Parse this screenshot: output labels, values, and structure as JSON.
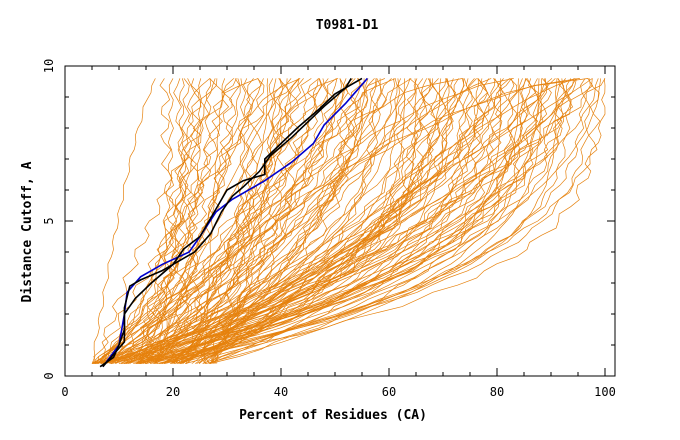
{
  "chart_data": {
    "type": "line",
    "title": "T0981-D1",
    "xlabel": "Percent of Residues (CA)",
    "ylabel": "Distance Cutoff, A",
    "xlim": [
      0,
      101
    ],
    "ylim": [
      0,
      10
    ],
    "x_ticks": [
      0,
      20,
      40,
      60,
      80,
      100
    ],
    "y_ticks": [
      0,
      5,
      10
    ],
    "grid": false,
    "legend": "none",
    "colors": {
      "orange": "#e6820e",
      "blue": "#0000cc",
      "black": "#000000"
    },
    "orange_band": {
      "count": 150,
      "note_free": true,
      "x_at_0_4_range": [
        5,
        28
      ],
      "x_at_9_6_range": [
        17,
        100
      ]
    },
    "series": [
      {
        "color": "blue",
        "points": [
          [
            7,
            0.3
          ],
          [
            10,
            1.0
          ],
          [
            11,
            2.0
          ],
          [
            11.5,
            2.7
          ],
          [
            14,
            3.2
          ],
          [
            18,
            3.6
          ],
          [
            23,
            4.0
          ],
          [
            25,
            4.5
          ],
          [
            28,
            5.3
          ],
          [
            31,
            5.7
          ],
          [
            37,
            6.3
          ],
          [
            42,
            6.9
          ],
          [
            46,
            7.5
          ],
          [
            48,
            8.1
          ],
          [
            52,
            8.8
          ],
          [
            54,
            9.2
          ],
          [
            56,
            9.6
          ]
        ]
      },
      {
        "color": "black",
        "points": [
          [
            6.5,
            0.3
          ],
          [
            9,
            0.6
          ],
          [
            10,
            1.0
          ],
          [
            11,
            1.5
          ],
          [
            11,
            2.2
          ],
          [
            12,
            2.9
          ],
          [
            14,
            3.1
          ],
          [
            18,
            3.4
          ],
          [
            22,
            3.8
          ],
          [
            24,
            4.0
          ],
          [
            27,
            4.6
          ],
          [
            29,
            5.3
          ],
          [
            31,
            5.8
          ],
          [
            33,
            6.1
          ],
          [
            36,
            6.6
          ],
          [
            38,
            7.1
          ],
          [
            42,
            7.7
          ],
          [
            45,
            8.2
          ],
          [
            48,
            8.7
          ],
          [
            52,
            9.3
          ],
          [
            53,
            9.6
          ]
        ]
      },
      {
        "color": "black",
        "points": [
          [
            7,
            0.3
          ],
          [
            11,
            1.1
          ],
          [
            11,
            2.0
          ],
          [
            13,
            2.5
          ],
          [
            16,
            3.0
          ],
          [
            20,
            3.6
          ],
          [
            22,
            4.1
          ],
          [
            25,
            4.5
          ],
          [
            28,
            5.4
          ],
          [
            30,
            6.0
          ],
          [
            33,
            6.3
          ],
          [
            37,
            6.5
          ],
          [
            37,
            7.0
          ],
          [
            40,
            7.5
          ],
          [
            43,
            8.0
          ],
          [
            47,
            8.6
          ],
          [
            50,
            9.1
          ],
          [
            55,
            9.6
          ]
        ]
      }
    ]
  }
}
